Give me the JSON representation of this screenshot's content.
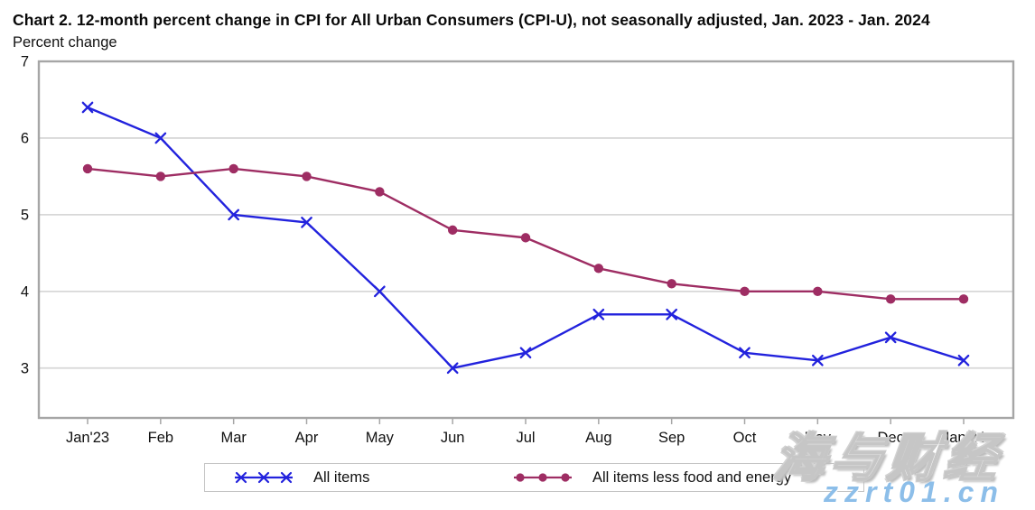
{
  "chart_data": {
    "type": "line",
    "title": "Chart 2. 12-month percent change in CPI for All Urban Consumers (CPI-U), not seasonally adjusted, Jan. 2023 - Jan. 2024",
    "ylabel": "Percent change",
    "xlabel": "",
    "categories": [
      "Jan'23",
      "Feb",
      "Mar",
      "Apr",
      "May",
      "Jun",
      "Jul",
      "Aug",
      "Sep",
      "Oct",
      "Nov",
      "Dec",
      "Jan'24"
    ],
    "series": [
      {
        "name": "All items",
        "marker": "x",
        "color": "#2222dd",
        "values": [
          6.4,
          6.0,
          5.0,
          4.9,
          4.0,
          3.0,
          3.2,
          3.7,
          3.7,
          3.2,
          3.1,
          3.4,
          3.1
        ]
      },
      {
        "name": "All items less food and energy",
        "marker": "circle",
        "color": "#9e2d63",
        "values": [
          5.6,
          5.5,
          5.6,
          5.5,
          5.3,
          4.8,
          4.7,
          4.3,
          4.1,
          4.0,
          4.0,
          3.9,
          3.9
        ]
      }
    ],
    "ylim": [
      2.35,
      7
    ],
    "yticks": [
      3,
      4,
      5,
      6,
      7
    ],
    "grid": true,
    "legend_position": "bottom"
  },
  "watermark": {
    "site_name": "海与财经",
    "site_url": "zzrt01.cn"
  },
  "colors": {
    "frame": "#a6a6a6",
    "gridline": "#d8d8d8",
    "tick": "#a6a6a6",
    "axis_text": "#111111",
    "legend_border": "#c4c4c4",
    "watermark_url": "#8cbee9",
    "watermark_outline": "#c6c6c6"
  }
}
